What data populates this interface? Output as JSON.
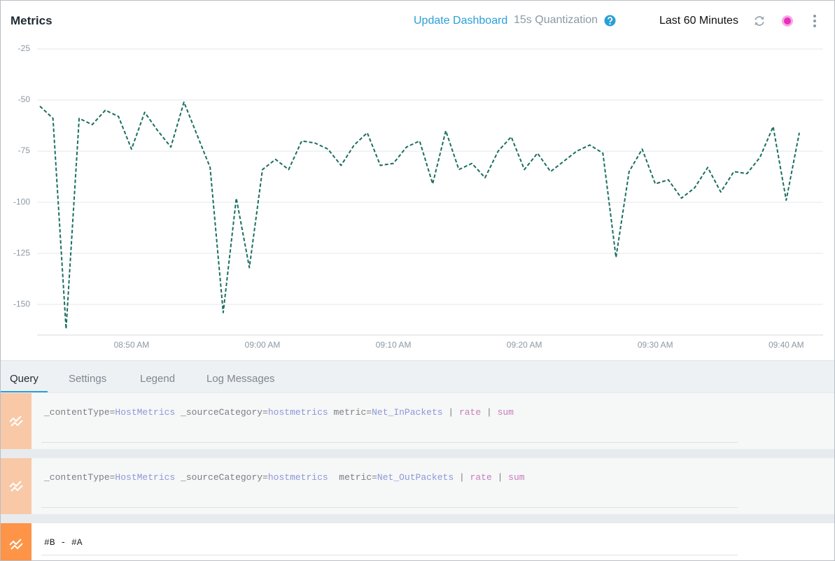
{
  "header": {
    "title": "Metrics",
    "update_link": "Update Dashboard",
    "quantization": "15s Quantization",
    "time_range": "Last 60 Minutes"
  },
  "chart_data": {
    "type": "line",
    "categories": [
      null,
      null,
      null,
      null,
      null,
      null,
      null,
      "08:50 AM",
      null,
      null,
      null,
      null,
      null,
      null,
      null,
      null,
      null,
      "09:00 AM",
      null,
      null,
      null,
      null,
      null,
      null,
      null,
      null,
      null,
      "09:10 AM",
      null,
      null,
      null,
      null,
      null,
      null,
      null,
      null,
      null,
      "09:20 AM",
      null,
      null,
      null,
      null,
      null,
      null,
      null,
      null,
      null,
      "09:30 AM",
      null,
      null,
      null,
      null,
      null,
      null,
      null,
      null,
      null,
      "09:40 AM",
      null
    ],
    "values": [
      -53,
      -59,
      -162,
      -59,
      -62,
      -55,
      -58,
      -74,
      -56,
      -65,
      -73,
      -51,
      -67,
      -83,
      -154,
      -98,
      -132,
      -84,
      -79,
      -84,
      -70,
      -71,
      -74,
      -82,
      -72,
      -66,
      -82,
      -81,
      -73,
      -70,
      -91,
      -65,
      -84,
      -81,
      -88,
      -75,
      -68,
      -84,
      -76,
      -85,
      -80,
      -75,
      -72,
      -76,
      -127,
      -85,
      -74,
      -91,
      -89,
      -98,
      -93,
      -83,
      -95,
      -85,
      -86,
      -78,
      -63,
      -99,
      -66
    ],
    "color": "#1b6e5f",
    "line_style": "dashed",
    "ylim": [
      -165,
      -20
    ],
    "yticks": [
      -25,
      -50,
      -75,
      -100,
      -125,
      -150
    ],
    "grid": true
  },
  "tabs": [
    "Query",
    "Settings",
    "Legend",
    "Log Messages"
  ],
  "queries": [
    {
      "tokens": [
        "_contentType=",
        "HostMetrics",
        " _sourceCategory=",
        "hostmetrics",
        " metric=",
        "Net_InPackets",
        " | ",
        "rate",
        " | ",
        "sum"
      ]
    },
    {
      "tokens": [
        "_contentType=",
        "HostMetrics",
        " _sourceCategory=",
        "hostmetrics",
        "  metric=",
        "Net_OutPackets",
        " | ",
        "rate",
        " | ",
        "sum"
      ]
    },
    {
      "tokens": [
        "#B - #A"
      ]
    }
  ]
}
